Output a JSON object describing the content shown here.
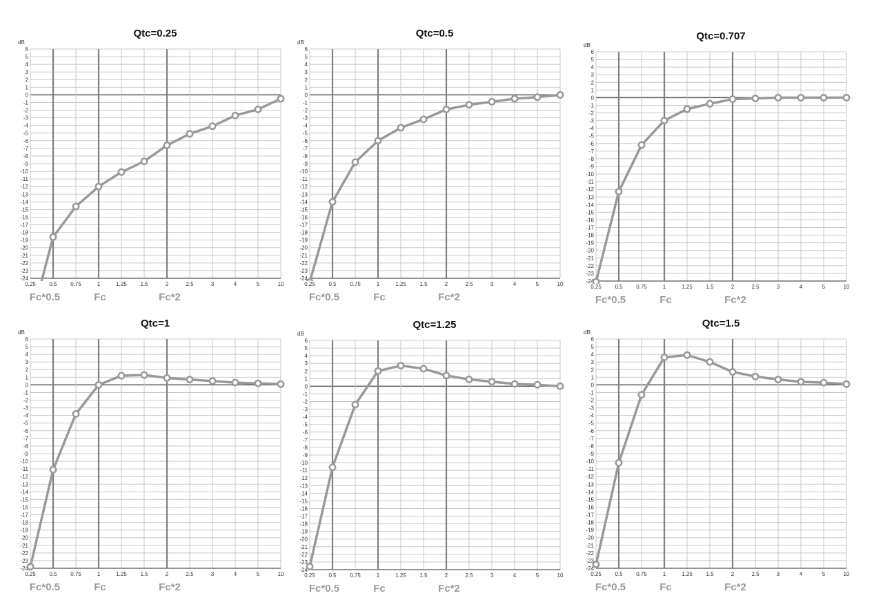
{
  "chart_data": [
    {
      "type": "line",
      "title": "Qtc=0.25",
      "ylabel": "dB",
      "ylim": [
        -24,
        6
      ],
      "categories": [
        "0.25",
        "0.5",
        "0.75",
        "1",
        "1.25",
        "1.5",
        "2",
        "2.5",
        "3",
        "4",
        "5",
        "10"
      ],
      "values": [
        -30,
        -18.6,
        -14.6,
        -12,
        -10.1,
        -8.7,
        -6.6,
        -5.1,
        -4.1,
        -2.7,
        -1.9,
        -0.5
      ],
      "markers": [
        {
          "at": "0.5",
          "label": "Fc*0.5"
        },
        {
          "at": "1",
          "label": "Fc"
        },
        {
          "at": "2",
          "label": "Fc*2"
        }
      ]
    },
    {
      "type": "line",
      "title": "Qtc=0.5",
      "ylabel": "dB",
      "ylim": [
        -24,
        6
      ],
      "categories": [
        "0.25",
        "0.5",
        "0.75",
        "1",
        "1.25",
        "1.5",
        "2",
        "2.5",
        "3",
        "4",
        "5",
        "10"
      ],
      "values": [
        -24.5,
        -14,
        -8.8,
        -6,
        -4.3,
        -3.2,
        -1.9,
        -1.3,
        -0.9,
        -0.5,
        -0.3,
        0
      ],
      "markers": [
        {
          "at": "0.5",
          "label": "Fc*0.5"
        },
        {
          "at": "1",
          "label": "Fc"
        },
        {
          "at": "2",
          "label": "Fc*2"
        }
      ]
    },
    {
      "type": "line",
      "title": "Qtc=0.707",
      "ylabel": "dB",
      "ylim": [
        -24,
        6
      ],
      "categories": [
        "0.25",
        "0.5",
        "0.75",
        "1",
        "1.25",
        "1.5",
        "2",
        "2.5",
        "3",
        "4",
        "5",
        "10"
      ],
      "values": [
        -24.1,
        -12.3,
        -6.2,
        -3,
        -1.5,
        -0.8,
        -0.2,
        -0.1,
        0,
        0,
        0,
        0
      ],
      "markers": [
        {
          "at": "0.5",
          "label": "Fc*0.5"
        },
        {
          "at": "1",
          "label": "Fc"
        },
        {
          "at": "2",
          "label": "Fc*2"
        }
      ]
    },
    {
      "type": "line",
      "title": "Qtc=1",
      "ylabel": "dB",
      "ylim": [
        -24,
        6
      ],
      "categories": [
        "0.25",
        "0.5",
        "0.75",
        "1",
        "1.25",
        "1.5",
        "2",
        "2.5",
        "3",
        "4",
        "5",
        "10"
      ],
      "values": [
        -23.8,
        -11.1,
        -3.8,
        0,
        1.2,
        1.3,
        0.9,
        0.7,
        0.5,
        0.3,
        0.2,
        0.1
      ],
      "markers": [
        {
          "at": "0.5",
          "label": "Fc*0.5"
        },
        {
          "at": "1",
          "label": "Fc"
        },
        {
          "at": "2",
          "label": "Fc*2"
        }
      ]
    },
    {
      "type": "line",
      "title": "Qtc=1.25",
      "ylabel": "dB",
      "ylim": [
        -24,
        6
      ],
      "categories": [
        "0.25",
        "0.5",
        "0.75",
        "1",
        "1.25",
        "1.5",
        "2",
        "2.5",
        "3",
        "4",
        "5",
        "10"
      ],
      "values": [
        -23.6,
        -10.6,
        -2.4,
        2,
        2.7,
        2.3,
        1.4,
        0.9,
        0.6,
        0.3,
        0.2,
        0
      ],
      "markers": [
        {
          "at": "0.5",
          "label": "Fc*0.5"
        },
        {
          "at": "1",
          "label": "Fc"
        },
        {
          "at": "2",
          "label": "Fc*2"
        }
      ]
    },
    {
      "type": "line",
      "title": "Qtc=1.5",
      "ylabel": "dB",
      "ylim": [
        -24,
        6
      ],
      "categories": [
        "0.25",
        "0.5",
        "0.75",
        "1",
        "1.25",
        "1.5",
        "2",
        "2.5",
        "3",
        "4",
        "5",
        "10"
      ],
      "values": [
        -23.5,
        -10.2,
        -1.3,
        3.6,
        3.9,
        3.0,
        1.7,
        1.1,
        0.7,
        0.4,
        0.3,
        0.1
      ],
      "markers": [
        {
          "at": "0.5",
          "label": "Fc*0.5"
        },
        {
          "at": "1",
          "label": "Fc"
        },
        {
          "at": "2",
          "label": "Fc*2"
        }
      ]
    }
  ],
  "colors": {
    "line": "#999999",
    "grid": "#c8c8c8",
    "marker_line": "#808080",
    "axis": "#555555",
    "fc_label": "#9a9a9a"
  }
}
